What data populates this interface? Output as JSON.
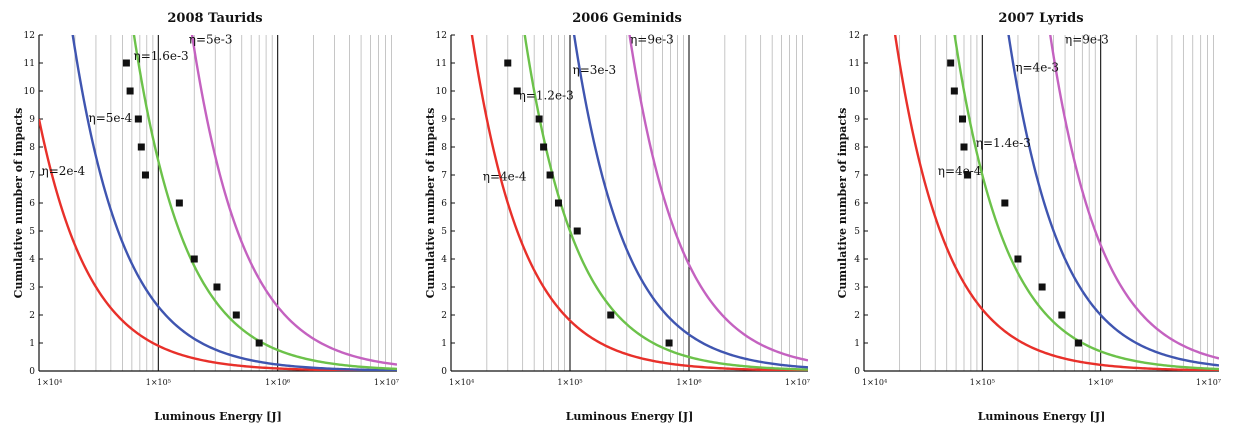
{
  "chart_data": [
    {
      "type": "line",
      "title": "2008 Taurids",
      "xlabel": "Luminous Energy [J]",
      "ylabel": "Cumulative number of impacts",
      "xscale": "log",
      "xlim": [
        10000,
        10000000
      ],
      "ylim": [
        0,
        12
      ],
      "yticks": [
        0,
        1,
        2,
        3,
        4,
        5,
        6,
        7,
        8,
        9,
        10,
        11,
        12
      ],
      "xtick_labels": [
        "1×10⁴",
        "1×10⁵",
        "1×10⁶",
        "1×10⁷"
      ],
      "grid": "log-minor vertical lines",
      "series": [
        {
          "name": "η=2e-4",
          "color": "#e8302a",
          "A": 90000.0
        },
        {
          "name": "η=5e-4",
          "color": "#3f55b0",
          "A": 230000.0
        },
        {
          "name": "η=1.6e-3",
          "color": "#6cc24a",
          "A": 750000.0
        },
        {
          "name": "η=5e-3",
          "color": "#c462c0",
          "A": 2300000.0
        }
      ],
      "annotations": [
        {
          "text": "η=2e-4",
          "x": 10500,
          "y": 7.0
        },
        {
          "text": "η=5e-4",
          "x": 26000,
          "y": 8.9
        },
        {
          "text": "η=1.6e-3",
          "x": 62000,
          "y": 11.1
        },
        {
          "text": "η=5e-3",
          "x": 180000,
          "y": 11.7
        }
      ],
      "points": [
        {
          "x": 54000,
          "y": 11
        },
        {
          "x": 58000,
          "y": 10
        },
        {
          "x": 68000,
          "y": 9
        },
        {
          "x": 72000,
          "y": 8
        },
        {
          "x": 78000,
          "y": 7
        },
        {
          "x": 150000,
          "y": 6
        },
        {
          "x": 200000,
          "y": 4
        },
        {
          "x": 310000,
          "y": 3
        },
        {
          "x": 450000,
          "y": 2
        },
        {
          "x": 700000,
          "y": 1
        }
      ]
    },
    {
      "type": "line",
      "title": "2006 Geminids",
      "xlabel": "Luminous Energy [J]",
      "ylabel": "Cumulative number of impacts",
      "xscale": "log",
      "xlim": [
        10000,
        10000000
      ],
      "ylim": [
        0,
        12
      ],
      "yticks": [
        0,
        1,
        2,
        3,
        4,
        5,
        6,
        7,
        8,
        9,
        10,
        11,
        12
      ],
      "xtick_labels": [
        "1×10⁴",
        "1×10⁵",
        "1×10⁶",
        "1×10⁷"
      ],
      "grid": "log-minor vertical lines",
      "series": [
        {
          "name": "η=4e-4",
          "color": "#e8302a",
          "A": 180000.0
        },
        {
          "name": "η=1.2e-3",
          "color": "#6cc24a",
          "A": 500000.0
        },
        {
          "name": "η=3e-3",
          "color": "#3f55b0",
          "A": 1300000.0
        },
        {
          "name": "η=9e-3",
          "color": "#c462c0",
          "A": 3800000.0
        }
      ],
      "annotations": [
        {
          "text": "η=4e-4",
          "x": 18500,
          "y": 6.8
        },
        {
          "text": "η=1.2e-3",
          "x": 37000,
          "y": 9.7
        },
        {
          "text": "η=3e-3",
          "x": 105000,
          "y": 10.6
        },
        {
          "text": "η=9e-3",
          "x": 320000,
          "y": 11.7
        }
      ],
      "points": [
        {
          "x": 30000,
          "y": 11
        },
        {
          "x": 36000,
          "y": 10
        },
        {
          "x": 55000,
          "y": 9
        },
        {
          "x": 60000,
          "y": 8
        },
        {
          "x": 68000,
          "y": 7
        },
        {
          "x": 80000,
          "y": 6
        },
        {
          "x": 115000,
          "y": 5
        },
        {
          "x": 220000,
          "y": 2
        },
        {
          "x": 680000,
          "y": 1
        }
      ]
    },
    {
      "type": "line",
      "title": "2007 Lyrids",
      "xlabel": "Luminous Energy [J]",
      "ylabel": "Cumulative number of impacts",
      "xscale": "log",
      "xlim": [
        10000,
        10000000
      ],
      "ylim": [
        0,
        12
      ],
      "yticks": [
        0,
        1,
        2,
        3,
        4,
        5,
        6,
        7,
        8,
        9,
        10,
        11,
        12
      ],
      "xtick_labels": [
        "1×10⁴",
        "1×10⁵",
        "1×10⁶",
        "1×10⁷"
      ],
      "grid": "log-minor vertical lines",
      "series": [
        {
          "name": "η=4e-4",
          "color": "#e8302a",
          "A": 220000.0
        },
        {
          "name": "η=1.4e-3",
          "color": "#6cc24a",
          "A": 700000.0
        },
        {
          "name": "η=4e-3",
          "color": "#3f55b0",
          "A": 2000000.0
        },
        {
          "name": "η=9e-3",
          "color": "#c462c0",
          "A": 4500000.0
        }
      ],
      "annotations": [
        {
          "text": "η=4e-4",
          "x": 42000,
          "y": 7.0
        },
        {
          "text": "η=1.4e-3",
          "x": 88000,
          "y": 8.0
        },
        {
          "text": "η=4e-3",
          "x": 190000,
          "y": 10.7
        },
        {
          "text": "η=9e-3",
          "x": 500000,
          "y": 11.7
        }
      ],
      "points": [
        {
          "x": 54000,
          "y": 11
        },
        {
          "x": 58000,
          "y": 10
        },
        {
          "x": 68000,
          "y": 9
        },
        {
          "x": 70000,
          "y": 8
        },
        {
          "x": 75000,
          "y": 7
        },
        {
          "x": 155000,
          "y": 6
        },
        {
          "x": 200000,
          "y": 4
        },
        {
          "x": 320000,
          "y": 3
        },
        {
          "x": 470000,
          "y": 2
        },
        {
          "x": 650000,
          "y": 1
        }
      ]
    }
  ]
}
